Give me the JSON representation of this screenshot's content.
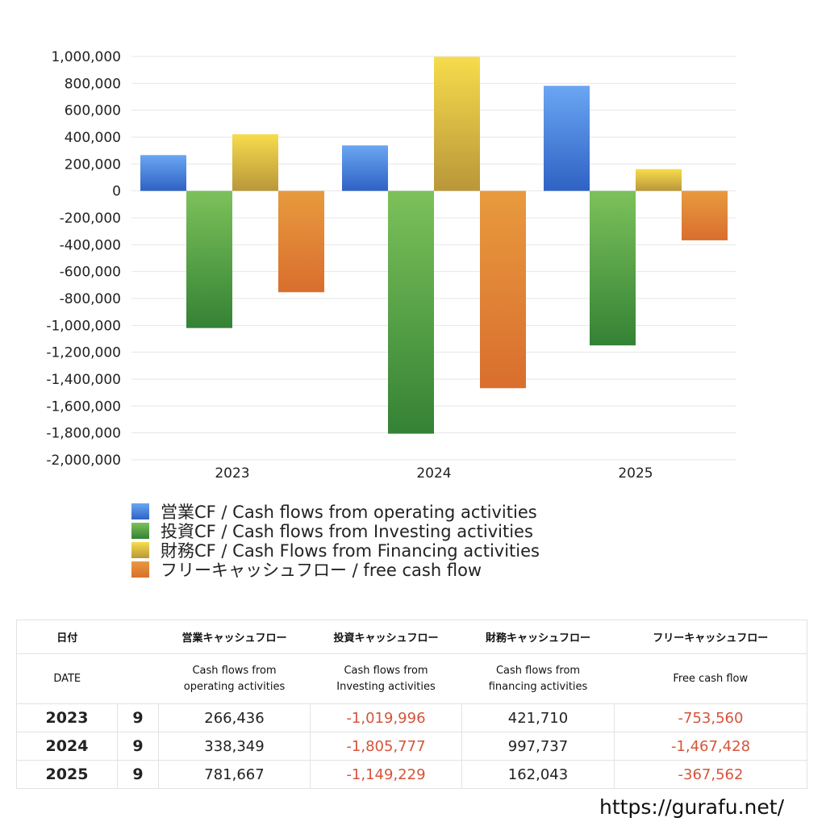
{
  "chart_data": {
    "type": "bar",
    "categories": [
      "2023",
      "2024",
      "2025"
    ],
    "series": [
      {
        "name": "営業CF / Cash flows from operating activities",
        "values": [
          266436,
          338349,
          781667
        ],
        "color_top": "#6aa6f2",
        "color_bottom": "#2f62c4"
      },
      {
        "name": "投資CF / Cash flows from Investing activities",
        "values": [
          -1019996,
          -1805777,
          -1149229
        ],
        "color_top": "#7cc15a",
        "color_bottom": "#348235"
      },
      {
        "name": "財務CF / Cash Flows from Financing activities",
        "values": [
          421710,
          997737,
          162043
        ],
        "color_top": "#f6dc4c",
        "color_bottom": "#b9973a"
      },
      {
        "name": "フリーキャッシュフロー / free cash flow",
        "values": [
          -753560,
          -1467428,
          -367562
        ],
        "color_top": "#e89a3e",
        "color_bottom": "#d96e2e"
      }
    ],
    "ylim": [
      -2000000,
      1000000
    ],
    "yticks": [
      "1,000,000",
      "800,000",
      "600,000",
      "400,000",
      "200,000",
      "0",
      "-200,000",
      "-400,000",
      "-600,000",
      "-800,000",
      "-1,000,000",
      "-1,200,000",
      "-1,400,000",
      "-1,600,000",
      "-1,800,000",
      "-2,000,000"
    ],
    "ytick_values": [
      1000000,
      800000,
      600000,
      400000,
      200000,
      0,
      -200000,
      -400000,
      -600000,
      -800000,
      -1000000,
      -1200000,
      -1400000,
      -1600000,
      -1800000,
      -2000000
    ],
    "grid": true,
    "legend_placement": "bottom"
  },
  "table": {
    "header": {
      "date": "日付",
      "operating": "営業キャッシュフロー",
      "investing": "投資キャッシュフロー",
      "financing": "財務キャッシュフロー",
      "free": "フリーキャッシュフロー"
    },
    "subheader": {
      "date": "DATE",
      "operating_1": "Cash flows from",
      "operating_2": "operating activities",
      "investing_1": "Cash flows from",
      "investing_2": "Investing activities",
      "financing_1": "Cash flows from",
      "financing_2": "financing activities",
      "free": "Free cash flow"
    },
    "rows": [
      {
        "year": "2023",
        "month": "9",
        "operating": "266,436",
        "investing": "-1,019,996",
        "financing": "421,710",
        "free": "-753,560"
      },
      {
        "year": "2024",
        "month": "9",
        "operating": "338,349",
        "investing": "-1,805,777",
        "financing": "997,737",
        "free": "-1,467,428"
      },
      {
        "year": "2025",
        "month": "9",
        "operating": "781,667",
        "investing": "-1,149,229",
        "financing": "162,043",
        "free": "-367,562"
      }
    ]
  },
  "site_url": "https://gurafu.net/"
}
